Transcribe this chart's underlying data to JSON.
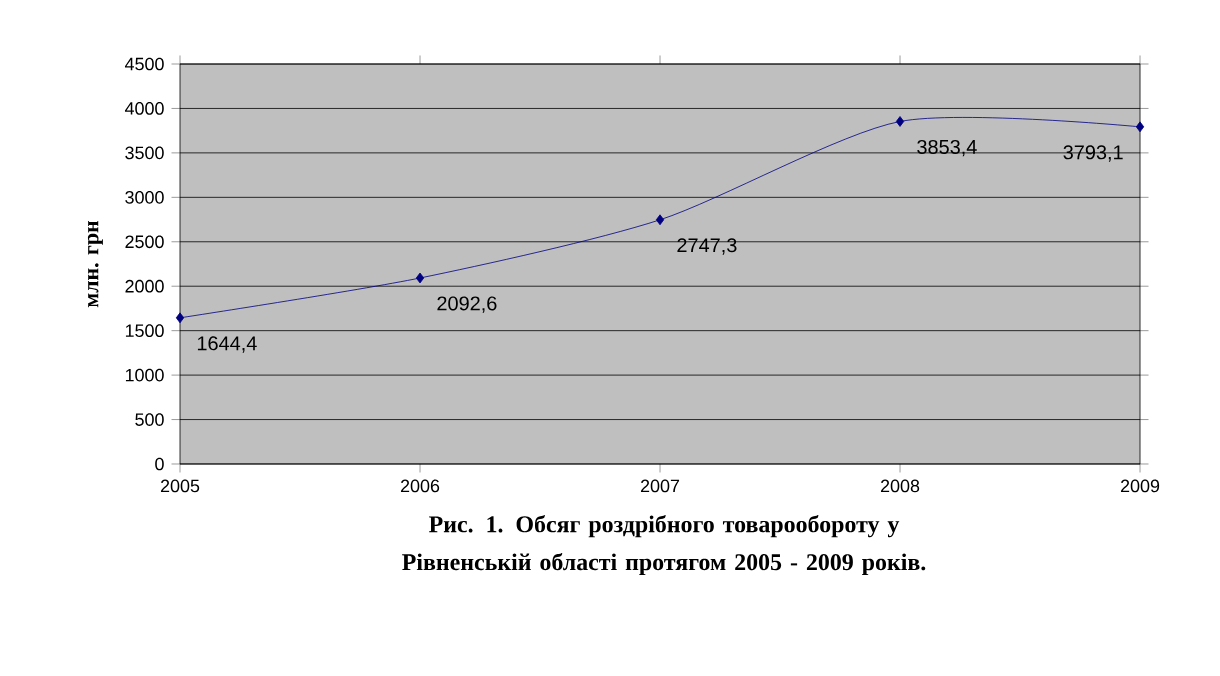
{
  "chart_data": {
    "type": "line",
    "title": "Рис. 1. Обсяг роздрібного товарообороту у Рівненській області протягом 2005 - 2009 років.",
    "ylabel": "млн. грн",
    "x": [
      2005,
      2006,
      2007,
      2008,
      2009
    ],
    "series": [
      {
        "color": "#000080",
        "values": [
          1644.4,
          2092.6,
          2747.3,
          3853.4,
          3793.1
        ],
        "value_labels": [
          "1644,4",
          "2092,6",
          "2747,3",
          "3853,4",
          "3793,1"
        ]
      }
    ],
    "xlim": [
      2005,
      2009
    ],
    "xticks": [
      2005,
      2006,
      2007,
      2008,
      2009
    ],
    "ylim": [
      0,
      4500
    ],
    "yticks": [
      0,
      500,
      1000,
      1500,
      2000,
      2500,
      3000,
      3500,
      4000,
      4500
    ],
    "grid": "y",
    "marker": "diamond",
    "line_style": "solid"
  }
}
